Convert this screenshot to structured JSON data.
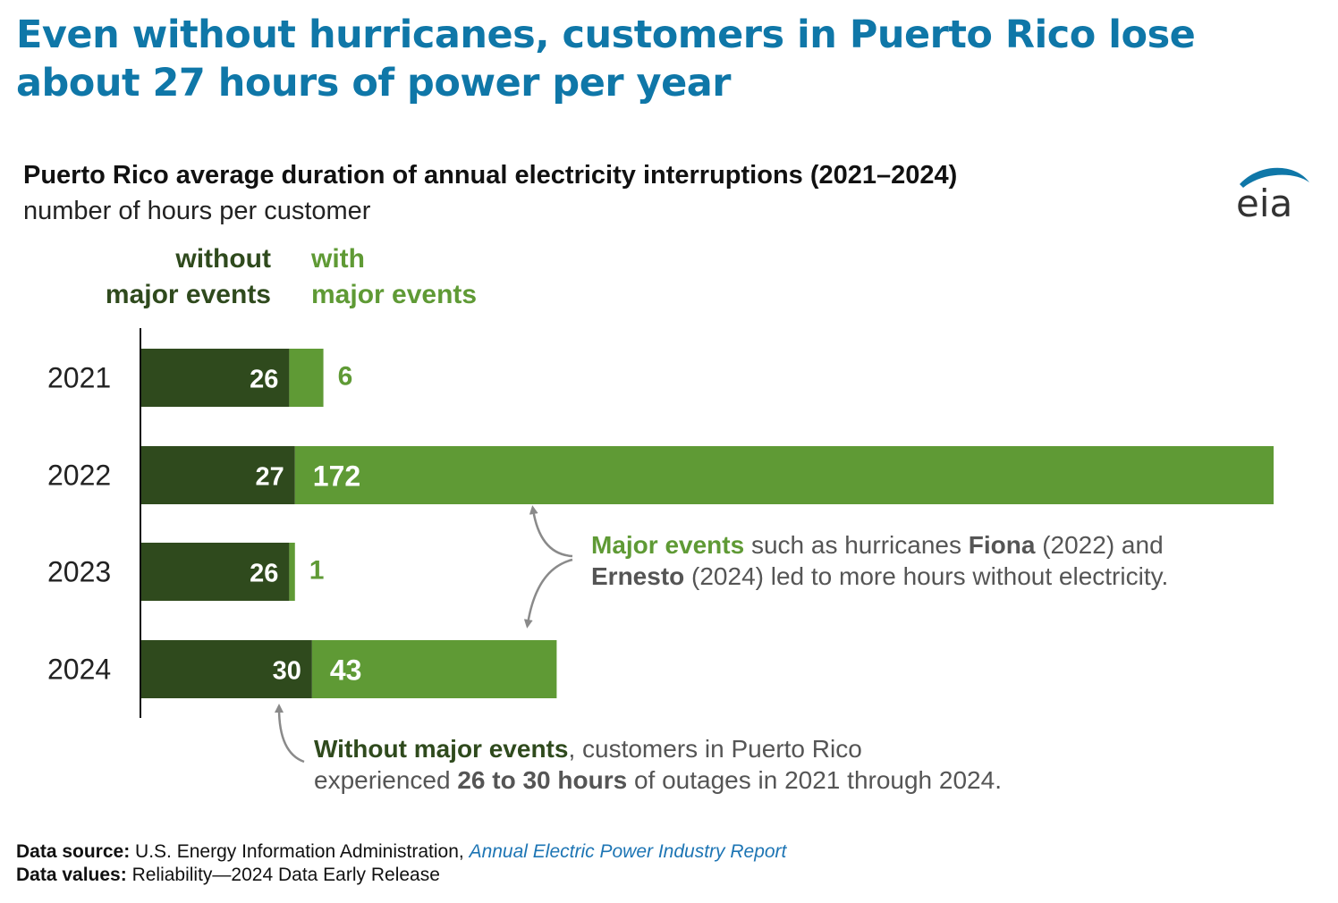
{
  "headline": "Even without hurricanes, customers in Puerto Rico lose about 27 hours of power per year",
  "logo_text": "eia",
  "chart_data": {
    "type": "bar",
    "orientation": "horizontal",
    "stacked": true,
    "title": "Puerto Rico average duration of annual electricity interruptions (2021–2024)",
    "subtitle": "number of hours per customer",
    "categories": [
      "2021",
      "2022",
      "2023",
      "2024"
    ],
    "series": [
      {
        "name": "without major events",
        "name_lines": [
          "without",
          "major events"
        ],
        "values": [
          26,
          27,
          26,
          30
        ],
        "color": "#2f4a1d"
      },
      {
        "name": "with major events",
        "name_lines": [
          "with",
          "major events"
        ],
        "values": [
          6,
          172,
          1,
          43
        ],
        "color": "#5f9a35"
      }
    ],
    "grid": false,
    "legend_position": "top-left",
    "annotations": {
      "major": {
        "t1": "Major events",
        "t2": " such as hurricanes ",
        "t3": "Fiona",
        "t4": " (2022) and",
        "t5": "Ernesto",
        "t6": " (2024) led to more hours without electricity."
      },
      "without": {
        "t1": "Without major events",
        "t2": ", customers in Puerto Rico",
        "t3": "experienced ",
        "t4": "26 to 30 hours",
        "t5": " of outages in 2021 through 2024."
      }
    }
  },
  "footer": {
    "source_label": "Data source:",
    "source_text": " U.S. Energy Information Administration, ",
    "source_link": "Annual Electric Power Industry Report",
    "values_label": "Data values:",
    "values_text": " Reliability—2024 Data Early Release"
  },
  "colors": {
    "headline": "#0f77a8",
    "dark_green": "#2f4a1d",
    "light_green": "#5f9a35",
    "arrow": "#8a8a8a"
  }
}
